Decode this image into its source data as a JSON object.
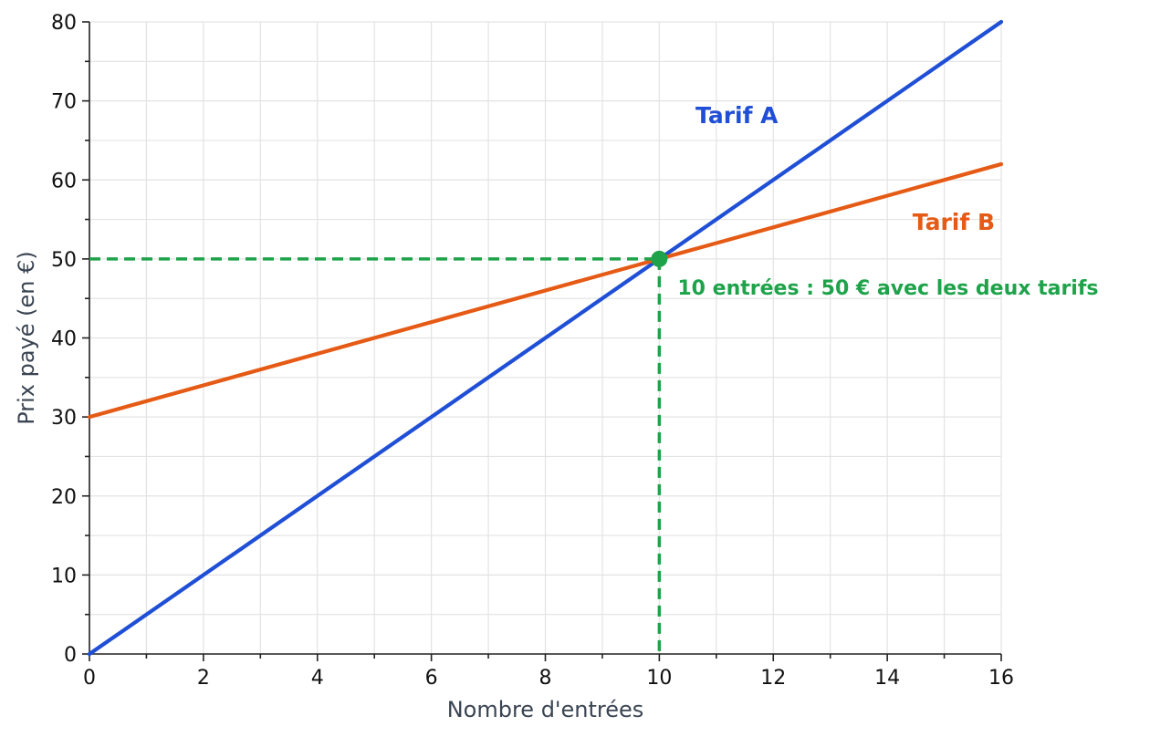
{
  "chart_data": {
    "type": "line",
    "xlabel": "Nombre d'entrées",
    "ylabel": "Prix payé (en €)",
    "xlim": [
      0,
      16
    ],
    "ylim": [
      0,
      80
    ],
    "x_ticks": [
      0,
      2,
      4,
      6,
      8,
      10,
      12,
      14,
      16
    ],
    "y_ticks": [
      0,
      10,
      20,
      30,
      40,
      50,
      60,
      70,
      80
    ],
    "x_minor_ticks": [
      1,
      3,
      5,
      7,
      9,
      11,
      13,
      15
    ],
    "y_minor_ticks": [
      5,
      15,
      25,
      35,
      45,
      55,
      65,
      75
    ],
    "grid": true,
    "series": [
      {
        "name": "Tarif A",
        "color": "#1f4fd6",
        "x": [
          0,
          16
        ],
        "y": [
          0,
          80
        ]
      },
      {
        "name": "Tarif B",
        "color": "#e55a14",
        "x": [
          0,
          16
        ],
        "y": [
          30,
          62
        ]
      }
    ],
    "intersection": {
      "x": 10,
      "y": 50,
      "color": "#1ea34a",
      "label": "10 entrées : 50 € avec les deux tarifs"
    }
  }
}
